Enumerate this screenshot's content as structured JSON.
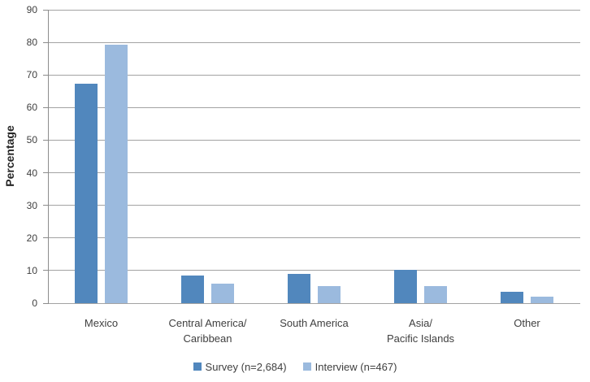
{
  "chart_data": {
    "type": "bar",
    "title": "",
    "xlabel": "",
    "ylabel": "Percentage",
    "ylim": [
      0,
      90
    ],
    "yticks": [
      0,
      10,
      20,
      30,
      40,
      50,
      60,
      70,
      80,
      90
    ],
    "grid": true,
    "legend_position": "bottom",
    "categories": [
      "Mexico",
      "Central America/\nCaribbean",
      "South America",
      "Asia/\nPacific Islands",
      "Other"
    ],
    "series": [
      {
        "name": "Survey (n=2,684)",
        "color": "#5187bd",
        "values": [
          67.4,
          8.6,
          9.0,
          10.3,
          3.5
        ]
      },
      {
        "name": "Interview (n=467)",
        "color": "#9bbade",
        "values": [
          79.3,
          6.1,
          5.3,
          5.3,
          2.1
        ]
      }
    ]
  },
  "style": {
    "gridline_color": "#a3a3a3",
    "axis_color": "#8c8c8c",
    "text_color": "#404040",
    "background": "#ffffff"
  }
}
